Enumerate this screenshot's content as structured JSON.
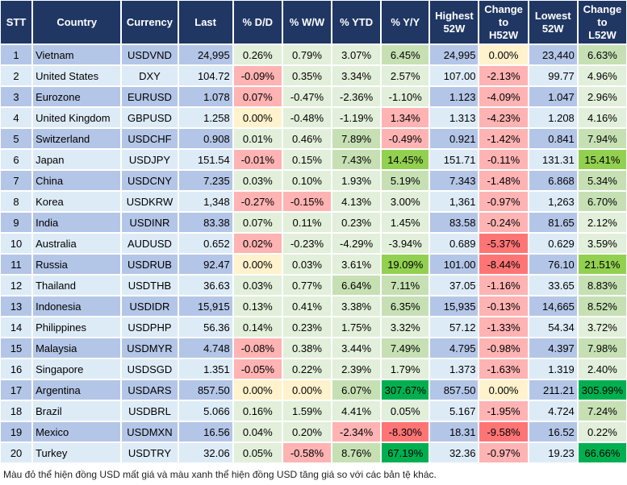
{
  "headers": [
    "STT",
    "Country",
    "Currency",
    "Last",
    "% D/D",
    "% W/W",
    "% YTD",
    "% Y/Y",
    "Highest\n52W",
    "Change\nto\nH52W",
    "Lowest\n52W",
    "Change\nto\nL52W"
  ],
  "colors": {
    "header": "#203764",
    "row_odd": "#B4C6E7",
    "row_even": "#DDEBF7",
    "light_green": "#E2EFDA",
    "green": "#C6E0B4",
    "bright_green": "#92D050",
    "dark_green": "#00B050",
    "pink": "#FFB3B3",
    "red": "#FF7575",
    "yellow": "#FFF2CC"
  },
  "rows": [
    {
      "stt": "1",
      "country": "Vietnam",
      "currency": "USDVND",
      "last": "24,995",
      "dd": "0.26%",
      "ww": "0.79%",
      "ytd": "3.07%",
      "yy": "6.45%",
      "h52": "24,995",
      "ch": "0.00%",
      "l52": "23,440",
      "cl": "6.63%",
      "shade": [
        "lg",
        "lg",
        "lg",
        "g",
        "y",
        "g"
      ]
    },
    {
      "stt": "2",
      "country": "United States",
      "currency": "DXY",
      "last": "104.72",
      "dd": "-0.09%",
      "ww": "0.35%",
      "ytd": "3.34%",
      "yy": "2.57%",
      "h52": "107.00",
      "ch": "-2.13%",
      "l52": "99.77",
      "cl": "4.96%",
      "shade": [
        "p",
        "lg",
        "lg",
        "lg",
        "p",
        "lg"
      ]
    },
    {
      "stt": "3",
      "country": "Eurozone",
      "currency": "EURUSD",
      "last": "1.078",
      "dd": "0.07%",
      "ww": "-0.47%",
      "ytd": "-2.36%",
      "yy": "-1.10%",
      "h52": "1.123",
      "ch": "-4.09%",
      "l52": "1.047",
      "cl": "2.96%",
      "shade": [
        "p",
        "lg",
        "lg",
        "lg",
        "p",
        "lg"
      ]
    },
    {
      "stt": "4",
      "country": "United Kingdom",
      "currency": "GBPUSD",
      "last": "1.258",
      "dd": "0.00%",
      "ww": "-0.48%",
      "ytd": "-1.19%",
      "yy": "1.34%",
      "h52": "1.313",
      "ch": "-4.23%",
      "l52": "1.208",
      "cl": "4.16%",
      "shade": [
        "y",
        "lg",
        "lg",
        "p",
        "p",
        "lg"
      ]
    },
    {
      "stt": "5",
      "country": "Switzerland",
      "currency": "USDCHF",
      "last": "0.908",
      "dd": "0.01%",
      "ww": "0.46%",
      "ytd": "7.89%",
      "yy": "-0.49%",
      "h52": "0.921",
      "ch": "-1.42%",
      "l52": "0.841",
      "cl": "7.94%",
      "shade": [
        "lg",
        "lg",
        "g",
        "p",
        "p",
        "g"
      ]
    },
    {
      "stt": "6",
      "country": "Japan",
      "currency": "USDJPY",
      "last": "151.54",
      "dd": "-0.01%",
      "ww": "0.15%",
      "ytd": "7.43%",
      "yy": "14.45%",
      "h52": "151.71",
      "ch": "-0.11%",
      "l52": "131.31",
      "cl": "15.41%",
      "shade": [
        "p",
        "lg",
        "g",
        "bg",
        "p",
        "bg"
      ]
    },
    {
      "stt": "7",
      "country": "China",
      "currency": "USDCNY",
      "last": "7.235",
      "dd": "0.03%",
      "ww": "0.10%",
      "ytd": "1.93%",
      "yy": "5.19%",
      "h52": "7.343",
      "ch": "-1.48%",
      "l52": "6.868",
      "cl": "5.34%",
      "shade": [
        "lg",
        "lg",
        "lg",
        "g",
        "p",
        "g"
      ]
    },
    {
      "stt": "8",
      "country": "Korea",
      "currency": "USDKRW",
      "last": "1,348",
      "dd": "-0.27%",
      "ww": "-0.15%",
      "ytd": "4.13%",
      "yy": "3.00%",
      "h52": "1,361",
      "ch": "-0.97%",
      "l52": "1,263",
      "cl": "6.70%",
      "shade": [
        "p",
        "p",
        "lg",
        "lg",
        "p",
        "g"
      ]
    },
    {
      "stt": "9",
      "country": "India",
      "currency": "USDINR",
      "last": "83.38",
      "dd": "0.07%",
      "ww": "0.11%",
      "ytd": "0.23%",
      "yy": "1.45%",
      "h52": "83.58",
      "ch": "-0.24%",
      "l52": "81.65",
      "cl": "2.12%",
      "shade": [
        "lg",
        "lg",
        "lg",
        "lg",
        "p",
        "lg"
      ]
    },
    {
      "stt": "10",
      "country": "Australia",
      "currency": "AUDUSD",
      "last": "0.652",
      "dd": "0.02%",
      "ww": "-0.23%",
      "ytd": "-4.29%",
      "yy": "-3.94%",
      "h52": "0.689",
      "ch": "-5.37%",
      "l52": "0.629",
      "cl": "3.59%",
      "shade": [
        "p",
        "lg",
        "lg",
        "lg",
        "rd",
        "lg"
      ]
    },
    {
      "stt": "11",
      "country": "Russia",
      "currency": "USDRUB",
      "last": "92.47",
      "dd": "0.00%",
      "ww": "0.03%",
      "ytd": "3.61%",
      "yy": "19.09%",
      "h52": "101.00",
      "ch": "-8.44%",
      "l52": "76.10",
      "cl": "21.51%",
      "shade": [
        "y",
        "lg",
        "lg",
        "bg",
        "rd",
        "bg"
      ]
    },
    {
      "stt": "12",
      "country": "Thailand",
      "currency": "USDTHB",
      "last": "36.63",
      "dd": "0.03%",
      "ww": "0.77%",
      "ytd": "6.64%",
      "yy": "7.11%",
      "h52": "37.05",
      "ch": "-1.16%",
      "l52": "33.65",
      "cl": "8.83%",
      "shade": [
        "lg",
        "lg",
        "g",
        "g",
        "p",
        "g"
      ]
    },
    {
      "stt": "13",
      "country": "Indonesia",
      "currency": "USDIDR",
      "last": "15,915",
      "dd": "0.13%",
      "ww": "0.41%",
      "ytd": "3.38%",
      "yy": "6.35%",
      "h52": "15,935",
      "ch": "-0.13%",
      "l52": "14,665",
      "cl": "8.52%",
      "shade": [
        "lg",
        "lg",
        "lg",
        "g",
        "p",
        "g"
      ]
    },
    {
      "stt": "14",
      "country": "Philippines",
      "currency": "USDPHP",
      "last": "56.36",
      "dd": "0.14%",
      "ww": "0.23%",
      "ytd": "1.75%",
      "yy": "3.32%",
      "h52": "57.12",
      "ch": "-1.33%",
      "l52": "54.34",
      "cl": "3.72%",
      "shade": [
        "lg",
        "lg",
        "lg",
        "lg",
        "p",
        "lg"
      ]
    },
    {
      "stt": "15",
      "country": "Malaysia",
      "currency": "USDMYR",
      "last": "4.748",
      "dd": "-0.08%",
      "ww": "0.38%",
      "ytd": "3.44%",
      "yy": "7.49%",
      "h52": "4.795",
      "ch": "-0.98%",
      "l52": "4.397",
      "cl": "7.98%",
      "shade": [
        "p",
        "lg",
        "lg",
        "g",
        "p",
        "g"
      ]
    },
    {
      "stt": "16",
      "country": "Singapore",
      "currency": "USDSGD",
      "last": "1.351",
      "dd": "-0.05%",
      "ww": "0.22%",
      "ytd": "2.39%",
      "yy": "1.79%",
      "h52": "1.373",
      "ch": "-1.63%",
      "l52": "1.319",
      "cl": "2.40%",
      "shade": [
        "p",
        "lg",
        "lg",
        "lg",
        "p",
        "lg"
      ]
    },
    {
      "stt": "17",
      "country": "Argentina",
      "currency": "USDARS",
      "last": "857.50",
      "dd": "0.00%",
      "ww": "0.00%",
      "ytd": "6.07%",
      "yy": "307.67%",
      "h52": "857.50",
      "ch": "0.00%",
      "l52": "211.21",
      "cl": "305.99%",
      "shade": [
        "y",
        "y",
        "g",
        "dg",
        "y",
        "dg"
      ]
    },
    {
      "stt": "18",
      "country": "Brazil",
      "currency": "USDBRL",
      "last": "5.066",
      "dd": "0.16%",
      "ww": "1.59%",
      "ytd": "4.41%",
      "yy": "0.05%",
      "h52": "5.167",
      "ch": "-1.95%",
      "l52": "4.724",
      "cl": "7.24%",
      "shade": [
        "lg",
        "lg",
        "lg",
        "lg",
        "p",
        "g"
      ]
    },
    {
      "stt": "19",
      "country": "Mexico",
      "currency": "USDMXN",
      "last": "16.56",
      "dd": "0.04%",
      "ww": "0.20%",
      "ytd": "-2.34%",
      "yy": "-8.30%",
      "h52": "18.31",
      "ch": "-9.58%",
      "l52": "16.52",
      "cl": "0.22%",
      "shade": [
        "lg",
        "lg",
        "p",
        "rd",
        "rd",
        "lg"
      ]
    },
    {
      "stt": "20",
      "country": "Turkey",
      "currency": "USDTRY",
      "last": "32.06",
      "dd": "0.05%",
      "ww": "-0.58%",
      "ytd": "8.76%",
      "yy": "67.19%",
      "h52": "32.36",
      "ch": "-0.97%",
      "l52": "19.23",
      "cl": "66.66%",
      "shade": [
        "lg",
        "p",
        "g",
        "dg",
        "p",
        "dg"
      ]
    }
  ],
  "footnote": "Màu đỏ thể hiện đồng USD mất giá và màu xanh thể hiện đồng USD tăng giá so với các bản tệ khác."
}
